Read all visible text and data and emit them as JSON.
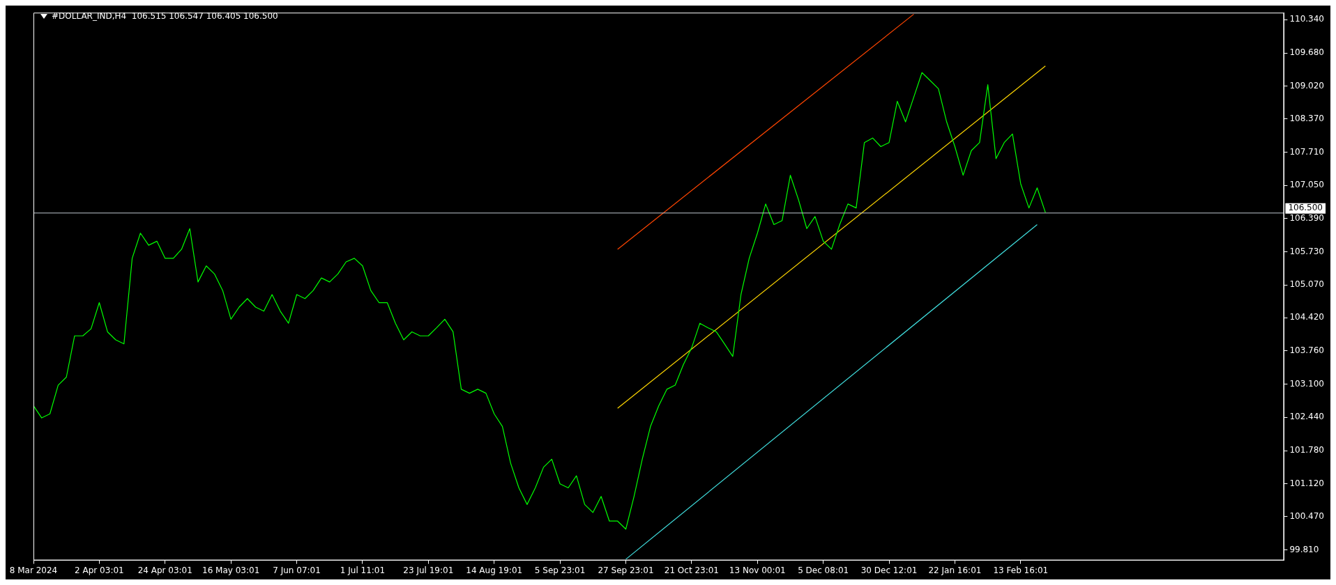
{
  "chart_data": {
    "type": "line",
    "title": "#DOLLAR_IND,H4  106.515 106.547 106.405 106.500",
    "categories": [
      "8 Mar 2024",
      null,
      null,
      null,
      null,
      null,
      null,
      null,
      "2 Apr 03:01",
      null,
      null,
      null,
      null,
      null,
      null,
      null,
      "24 Apr 03:01",
      null,
      null,
      null,
      null,
      null,
      null,
      null,
      "16 May 03:01",
      null,
      null,
      null,
      null,
      null,
      null,
      null,
      "7 Jun 07:01",
      null,
      null,
      null,
      null,
      null,
      null,
      null,
      "1 Jul 11:01",
      null,
      null,
      null,
      null,
      null,
      null,
      null,
      "23 Jul 19:01",
      null,
      null,
      null,
      null,
      null,
      null,
      null,
      "14 Aug 19:01",
      null,
      null,
      null,
      null,
      null,
      null,
      null,
      "5 Sep 23:01",
      null,
      null,
      null,
      null,
      null,
      null,
      null,
      "27 Sep 23:01",
      null,
      null,
      null,
      null,
      null,
      null,
      null,
      "21 Oct 23:01",
      null,
      null,
      null,
      null,
      null,
      null,
      null,
      "13 Nov 00:01",
      null,
      null,
      null,
      null,
      null,
      null,
      null,
      "5 Dec 08:01",
      null,
      null,
      null,
      null,
      null,
      null,
      null,
      "30 Dec 12:01",
      null,
      null,
      null,
      null,
      null,
      null,
      null,
      "22 Jan 16:01",
      null,
      null,
      null,
      null,
      null,
      null,
      null,
      "13 Feb 16:01",
      null,
      null,
      null,
      null,
      null,
      null,
      null,
      null,
      null,
      null,
      null,
      null,
      null,
      null,
      null,
      null,
      null,
      null,
      null,
      null,
      null,
      null,
      null,
      null,
      null,
      null,
      null,
      null,
      null,
      null,
      null,
      null
    ],
    "series": [
      {
        "color": "#00ff00",
        "values": [
          102.67,
          102.43,
          102.51,
          103.08,
          103.24,
          104.06,
          104.06,
          104.2,
          104.72,
          104.14,
          103.98,
          103.9,
          105.6,
          106.1,
          105.86,
          105.94,
          105.6,
          105.6,
          105.78,
          106.19,
          105.13,
          105.45,
          105.29,
          104.96,
          104.39,
          104.63,
          104.8,
          104.63,
          104.55,
          104.88,
          104.55,
          104.31,
          104.88,
          104.8,
          104.96,
          105.21,
          105.13,
          105.29,
          105.53,
          105.6,
          105.45,
          104.96,
          104.72,
          104.72,
          104.31,
          103.98,
          104.14,
          104.06,
          104.06,
          104.22,
          104.39,
          104.14,
          103.0,
          102.92,
          103.0,
          102.92,
          102.51,
          102.26,
          101.53,
          101.04,
          100.71,
          101.04,
          101.45,
          101.61,
          101.12,
          101.04,
          101.28,
          100.71,
          100.55,
          100.87,
          100.38,
          100.38,
          100.22,
          100.87,
          101.61,
          102.26,
          102.67,
          103.0,
          103.08,
          103.49,
          103.82,
          104.31,
          104.22,
          104.14,
          103.9,
          103.65,
          104.88,
          105.6,
          106.1,
          106.68,
          106.27,
          106.35,
          107.25,
          106.76,
          106.19,
          106.43,
          105.94,
          105.78,
          106.27,
          106.68,
          106.6,
          107.9,
          107.99,
          107.82,
          107.9,
          108.72,
          108.31,
          108.8,
          109.29,
          109.13,
          108.97,
          108.31,
          107.82,
          107.25,
          107.74,
          107.9,
          109.05,
          107.58,
          107.9,
          108.07,
          107.08,
          106.6,
          107.0,
          106.51,
          null,
          null,
          null,
          null,
          null,
          null,
          null,
          null,
          null,
          null,
          null,
          null,
          null,
          null,
          null,
          null,
          null,
          null,
          null,
          null,
          null,
          null,
          null,
          null,
          null,
          null,
          null,
          null,
          null
        ]
      },
      {
        "type": "line",
        "color": "#ff4500",
        "values": [
          null,
          null,
          null,
          null,
          null,
          null,
          null,
          null,
          null,
          null,
          null,
          null,
          null,
          null,
          null,
          null,
          null,
          null,
          null,
          null,
          null,
          null,
          null,
          null,
          null,
          null,
          null,
          null,
          null,
          null,
          null,
          null,
          null,
          null,
          null,
          null,
          null,
          null,
          null,
          null,
          null,
          null,
          null,
          null,
          null,
          null,
          null,
          null,
          null,
          null,
          null,
          null,
          null,
          null,
          null,
          null,
          null,
          null,
          null,
          null,
          null,
          null,
          null,
          null,
          null,
          null,
          null,
          null,
          null,
          null,
          null,
          105.78,
          null,
          null,
          null,
          null,
          null,
          null,
          null,
          null,
          null,
          null,
          null,
          null,
          null,
          null,
          null,
          null,
          null,
          null,
          null,
          null,
          null,
          null,
          null,
          null,
          null,
          null,
          null,
          null,
          null,
          null,
          null,
          null,
          null,
          null,
          null,
          110.45,
          null,
          null,
          null,
          null,
          null,
          null,
          null,
          null,
          null,
          null,
          null,
          null,
          null,
          null,
          null,
          null,
          null,
          null,
          null,
          null,
          null,
          null,
          null,
          null,
          null,
          null,
          null,
          null,
          null,
          null,
          null,
          null,
          null,
          null,
          null,
          null,
          null,
          null,
          null,
          null,
          null,
          null,
          null,
          null,
          null
        ]
      },
      {
        "type": "line",
        "color": "#ffd700",
        "values": [
          null,
          null,
          null,
          null,
          null,
          null,
          null,
          null,
          null,
          null,
          null,
          null,
          null,
          null,
          null,
          null,
          null,
          null,
          null,
          null,
          null,
          null,
          null,
          null,
          null,
          null,
          null,
          null,
          null,
          null,
          null,
          null,
          null,
          null,
          null,
          null,
          null,
          null,
          null,
          null,
          null,
          null,
          null,
          null,
          null,
          null,
          null,
          null,
          null,
          null,
          null,
          null,
          null,
          null,
          null,
          null,
          null,
          null,
          null,
          null,
          null,
          null,
          null,
          null,
          null,
          null,
          null,
          null,
          null,
          null,
          null,
          102.62,
          null,
          null,
          null,
          null,
          null,
          null,
          null,
          null,
          null,
          null,
          null,
          null,
          null,
          null,
          null,
          null,
          null,
          null,
          null,
          null,
          null,
          null,
          null,
          null,
          null,
          null,
          null,
          null,
          null,
          null,
          null,
          null,
          null,
          null,
          null,
          null,
          null,
          null,
          null,
          null,
          null,
          null,
          null,
          null,
          null,
          null,
          null,
          null,
          null,
          null,
          null,
          109.42,
          null,
          null,
          null,
          null,
          null,
          null,
          null,
          null,
          null,
          null,
          null,
          null,
          null,
          null,
          null,
          null,
          null,
          null,
          null,
          null,
          null,
          null,
          null,
          null,
          null,
          null,
          null,
          null,
          null
        ]
      },
      {
        "type": "line",
        "color": "#40e0e0",
        "values": [
          null,
          null,
          null,
          null,
          null,
          null,
          null,
          null,
          null,
          null,
          null,
          null,
          null,
          null,
          null,
          null,
          null,
          null,
          null,
          null,
          null,
          null,
          null,
          null,
          null,
          null,
          null,
          null,
          null,
          null,
          null,
          null,
          null,
          null,
          null,
          null,
          null,
          null,
          null,
          null,
          null,
          null,
          null,
          null,
          null,
          null,
          null,
          null,
          null,
          null,
          null,
          null,
          null,
          null,
          null,
          null,
          null,
          null,
          null,
          null,
          null,
          null,
          null,
          null,
          null,
          null,
          null,
          null,
          null,
          null,
          null,
          null,
          99.62,
          null,
          null,
          null,
          null,
          null,
          null,
          null,
          null,
          null,
          null,
          null,
          null,
          null,
          null,
          null,
          null,
          null,
          null,
          null,
          null,
          null,
          null,
          null,
          null,
          null,
          null,
          null,
          null,
          null,
          null,
          null,
          null,
          null,
          null,
          null,
          null,
          null,
          null,
          null,
          null,
          null,
          null,
          null,
          null,
          null,
          null,
          null,
          null,
          null,
          106.27,
          null,
          null,
          null,
          null,
          null,
          null,
          null,
          null,
          null,
          null,
          null,
          null,
          null,
          null,
          null,
          null,
          null,
          null,
          null,
          null,
          null,
          null,
          null,
          null,
          null,
          null,
          null,
          null,
          null,
          null
        ]
      }
    ],
    "ylim": [
      99.6,
      110.48
    ],
    "yticks": [
      {
        "value": 99.81,
        "label": "99.810"
      },
      {
        "value": 100.47,
        "label": "100.470"
      },
      {
        "value": 101.12,
        "label": "101.120"
      },
      {
        "value": 101.78,
        "label": "101.780"
      },
      {
        "value": 102.44,
        "label": "102.440"
      },
      {
        "value": 103.1,
        "label": "103.100"
      },
      {
        "value": 103.76,
        "label": "103.760"
      },
      {
        "value": 104.42,
        "label": "104.420"
      },
      {
        "value": 105.07,
        "label": "105.070"
      },
      {
        "value": 105.73,
        "label": "105.730"
      },
      {
        "value": 106.39,
        "label": "106.390"
      },
      {
        "value": 107.05,
        "label": "107.050"
      },
      {
        "value": 107.71,
        "label": "107.710"
      },
      {
        "value": 108.37,
        "label": "108.370"
      },
      {
        "value": 109.02,
        "label": "109.020"
      },
      {
        "value": 109.68,
        "label": "109.680"
      },
      {
        "value": 110.34,
        "label": "110.340"
      }
    ],
    "ref_lines": [
      {
        "axis": "y",
        "value": 106.5,
        "label": "106.500",
        "color": "#c0c8d0"
      }
    ],
    "grid": false,
    "legend": false,
    "marker": "none",
    "line_style": "solid"
  }
}
